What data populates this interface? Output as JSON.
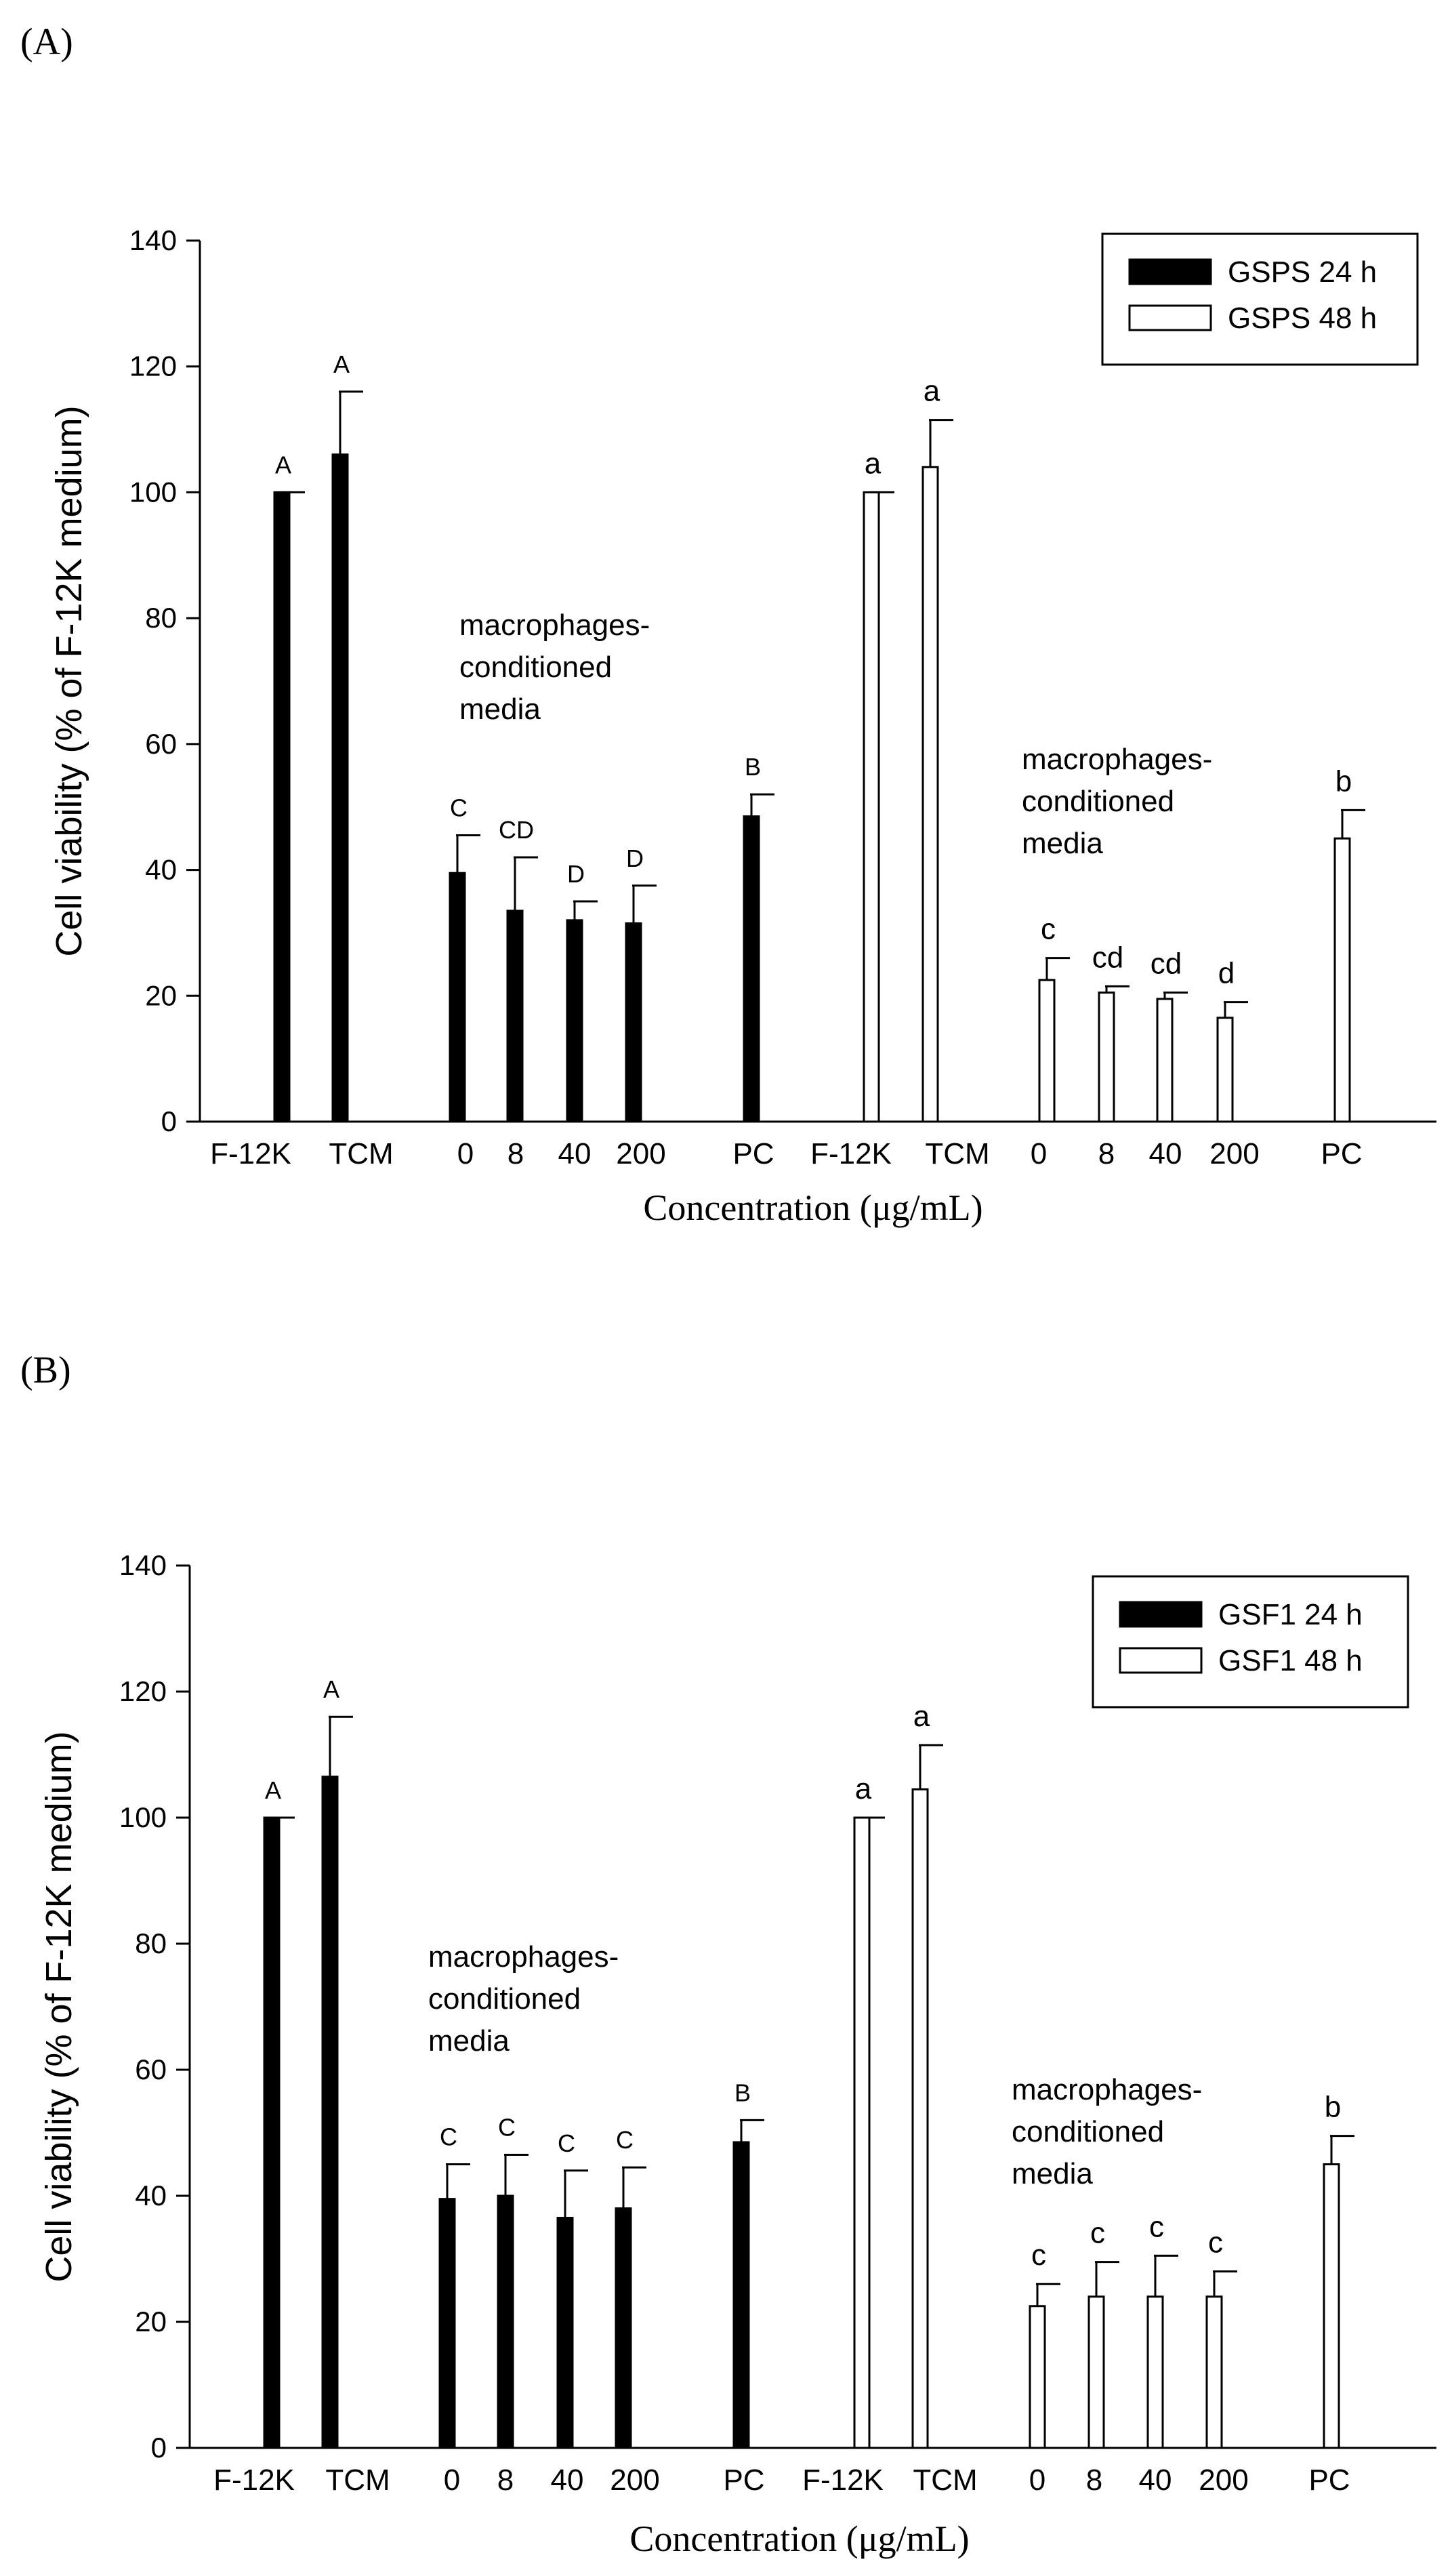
{
  "figure": {
    "panels": [
      {
        "panel_label": "(A)",
        "legend": [
          "GSPS 24 h",
          "GSPS 48 h"
        ],
        "note": [
          "macrophages-",
          "conditioned",
          "media"
        ]
      },
      {
        "panel_label": "(B)",
        "legend": [
          "GSF1 24 h",
          "GSF1 48 h"
        ],
        "note": [
          "macrophages-",
          "conditioned",
          "media"
        ]
      }
    ]
  },
  "chart_data": [
    {
      "type": "bar",
      "ylabel": "Cell viability (% of F-12K medium)",
      "xlabel": "Concentration (μg/mL)",
      "ylim": [
        0,
        140
      ],
      "yticks": [
        0,
        20,
        40,
        60,
        80,
        100,
        120,
        140
      ],
      "grid": false,
      "legend_position": "top-right",
      "series": [
        {
          "name": "GSPS 24 h",
          "fill": "#000000",
          "categories": [
            "F-12K",
            "TCM",
            "0",
            "8",
            "40",
            "200",
            "PC"
          ],
          "values": [
            100,
            106,
            39.5,
            33.5,
            32,
            31.5,
            48.5
          ],
          "error": [
            0,
            10,
            6,
            8.5,
            3,
            6,
            3.5
          ],
          "letters": [
            "A",
            "A",
            "C",
            "CD",
            "D",
            "D",
            "B"
          ]
        },
        {
          "name": "GSPS 48 h",
          "fill": "#ffffff",
          "categories": [
            "F-12K",
            "TCM",
            "0",
            "8",
            "40",
            "200",
            "PC"
          ],
          "values": [
            100,
            104,
            22.5,
            20.5,
            19.5,
            16.5,
            45
          ],
          "error": [
            0,
            7.5,
            3.5,
            1,
            1,
            2.5,
            4.5
          ],
          "letters": [
            "a",
            "a",
            "c",
            "cd",
            "cd",
            "d",
            "b"
          ]
        }
      ]
    },
    {
      "type": "bar",
      "ylabel": "Cell viability (% of F-12K medium)",
      "xlabel": "Concentration (μg/mL)",
      "ylim": [
        0,
        140
      ],
      "yticks": [
        0,
        20,
        40,
        60,
        80,
        100,
        120,
        140
      ],
      "grid": false,
      "legend_position": "top-right",
      "series": [
        {
          "name": "GSF1 24 h",
          "fill": "#000000",
          "categories": [
            "F-12K",
            "TCM",
            "0",
            "8",
            "40",
            "200",
            "PC"
          ],
          "values": [
            100,
            106.5,
            39.5,
            40,
            36.5,
            38,
            48.5
          ],
          "error": [
            0,
            9.5,
            5.5,
            6.5,
            7.5,
            6.5,
            3.5
          ],
          "letters": [
            "A",
            "A",
            "C",
            "C",
            "C",
            "C",
            "B"
          ]
        },
        {
          "name": "GSF1 48 h",
          "fill": "#ffffff",
          "categories": [
            "F-12K",
            "TCM",
            "0",
            "8",
            "40",
            "200",
            "PC"
          ],
          "values": [
            100,
            104.5,
            22.5,
            24,
            24,
            24,
            45
          ],
          "error": [
            0,
            7,
            3.5,
            5.5,
            6.5,
            4,
            4.5
          ],
          "letters": [
            "a",
            "a",
            "c",
            "c",
            "c",
            "c",
            "b"
          ]
        }
      ]
    }
  ]
}
